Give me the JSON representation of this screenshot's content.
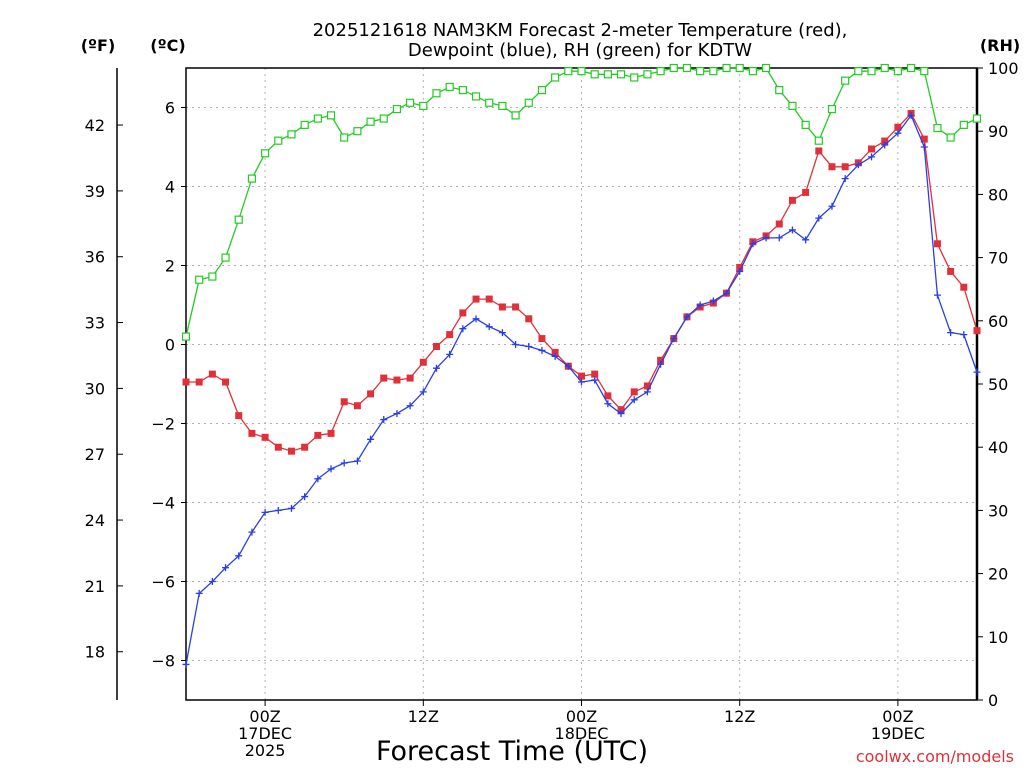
{
  "chart_data": {
    "type": "line",
    "title_lines": [
      "2025121618 NAM3KM Forecast 2-meter Temperature (red),",
      "Dewpoint (blue), RH (green) for KDTW"
    ],
    "xlabel": "Forecast Time (UTC)",
    "credit": "coolwx.com/models",
    "x_unit": "forecast hours from 2025-12-16 18Z",
    "xlim": [
      0,
      60
    ],
    "y_left_c": {
      "unit_label": "(ºC)",
      "ylim": [
        -9,
        7
      ],
      "ticks": [
        -8,
        -6,
        -4,
        -2,
        0,
        2,
        4,
        6
      ]
    },
    "y_left_f": {
      "unit_label": "(ºF)",
      "ticks": [
        18,
        21,
        24,
        27,
        30,
        33,
        36,
        39,
        42
      ]
    },
    "y_right_rh": {
      "unit_label": "(RH)",
      "ylim": [
        0,
        100
      ],
      "ticks": [
        0,
        10,
        20,
        30,
        40,
        50,
        60,
        70,
        80,
        90,
        100
      ]
    },
    "x_ticks": [
      {
        "x": 6,
        "lines": [
          "00Z",
          "17DEC",
          "2025"
        ]
      },
      {
        "x": 18,
        "lines": [
          "12Z"
        ]
      },
      {
        "x": 30,
        "lines": [
          "00Z",
          "18DEC"
        ]
      },
      {
        "x": 42,
        "lines": [
          "12Z"
        ]
      },
      {
        "x": 54,
        "lines": [
          "00Z",
          "19DEC"
        ]
      }
    ],
    "grid": true,
    "series": [
      {
        "name": "Temperature",
        "axis": "C",
        "color": "#e0303a",
        "marker": "filled-square",
        "x": [
          0,
          1,
          2,
          3,
          4,
          5,
          6,
          7,
          8,
          9,
          10,
          11,
          12,
          13,
          14,
          15,
          16,
          17,
          18,
          19,
          20,
          21,
          22,
          23,
          24,
          25,
          26,
          27,
          28,
          29,
          30,
          31,
          32,
          33,
          34,
          35,
          36,
          37,
          38,
          39,
          40,
          41,
          42,
          43,
          44,
          45,
          46,
          47,
          48,
          49,
          50,
          51,
          52,
          53,
          54,
          55,
          56,
          57,
          58,
          59,
          60
        ],
        "values": [
          -0.95,
          -0.95,
          -0.75,
          -0.95,
          -1.8,
          -2.25,
          -2.35,
          -2.6,
          -2.7,
          -2.6,
          -2.3,
          -2.25,
          -1.45,
          -1.55,
          -1.25,
          -0.85,
          -0.9,
          -0.85,
          -0.45,
          -0.05,
          0.25,
          0.8,
          1.15,
          1.15,
          0.95,
          0.95,
          0.65,
          0.15,
          -0.2,
          -0.55,
          -0.8,
          -0.75,
          -1.3,
          -1.65,
          -1.2,
          -1.05,
          -0.4,
          0.15,
          0.7,
          0.95,
          1.05,
          1.3,
          1.95,
          2.6,
          2.75,
          3.05,
          3.65,
          3.85,
          4.9,
          4.5,
          4.5,
          4.6,
          4.95,
          5.15,
          5.5,
          5.85,
          5.2,
          2.55,
          1.85,
          1.45,
          0.35
        ]
      },
      {
        "name": "Dewpoint",
        "axis": "C",
        "color": "#2a3ee8",
        "marker": "plus",
        "x": [
          0,
          1,
          2,
          3,
          4,
          5,
          6,
          7,
          8,
          9,
          10,
          11,
          12,
          13,
          14,
          15,
          16,
          17,
          18,
          19,
          20,
          21,
          22,
          23,
          24,
          25,
          26,
          27,
          28,
          29,
          30,
          31,
          32,
          33,
          34,
          35,
          36,
          37,
          38,
          39,
          40,
          41,
          42,
          43,
          44,
          45,
          46,
          47,
          48,
          49,
          50,
          51,
          52,
          53,
          54,
          55,
          56,
          57,
          58,
          59,
          60
        ],
        "values": [
          -8.1,
          -6.3,
          -6.0,
          -5.65,
          -5.35,
          -4.75,
          -4.25,
          -4.2,
          -4.15,
          -3.85,
          -3.4,
          -3.15,
          -3.0,
          -2.95,
          -2.4,
          -1.9,
          -1.75,
          -1.55,
          -1.2,
          -0.6,
          -0.25,
          0.4,
          0.65,
          0.45,
          0.3,
          0.0,
          -0.05,
          -0.15,
          -0.3,
          -0.55,
          -0.95,
          -0.9,
          -1.5,
          -1.75,
          -1.4,
          -1.2,
          -0.5,
          0.15,
          0.7,
          1.0,
          1.1,
          1.3,
          1.85,
          2.55,
          2.7,
          2.7,
          2.9,
          2.65,
          3.2,
          3.5,
          4.2,
          4.55,
          4.75,
          5.05,
          5.35,
          5.8,
          5.0,
          1.25,
          0.3,
          0.25,
          -0.7
        ]
      },
      {
        "name": "Relative Humidity",
        "axis": "RH",
        "color": "#22cc22",
        "marker": "open-square",
        "x": [
          0,
          1,
          2,
          3,
          4,
          5,
          6,
          7,
          8,
          9,
          10,
          11,
          12,
          13,
          14,
          15,
          16,
          17,
          18,
          19,
          20,
          21,
          22,
          23,
          24,
          25,
          26,
          27,
          28,
          29,
          30,
          31,
          32,
          33,
          34,
          35,
          36,
          37,
          38,
          39,
          40,
          41,
          42,
          43,
          44,
          45,
          46,
          47,
          48,
          49,
          50,
          51,
          52,
          53,
          54,
          55,
          56,
          57,
          58,
          59,
          60
        ],
        "values": [
          57.5,
          66.5,
          67,
          70,
          76,
          82.5,
          86.5,
          88.5,
          89.5,
          91,
          92,
          92.5,
          89,
          90,
          91.5,
          92,
          93.5,
          94.5,
          94,
          96,
          97,
          96.5,
          95.5,
          94.5,
          94,
          92.5,
          94.5,
          96.5,
          98.5,
          99.5,
          99.5,
          99,
          99,
          99,
          98.5,
          99,
          99.5,
          100,
          100,
          99.5,
          99.5,
          100,
          100,
          99.5,
          100,
          96.5,
          94,
          91,
          88.5,
          93.5,
          98,
          99.5,
          99.5,
          100,
          99.5,
          100,
          99.5,
          90.5,
          89,
          91,
          92
        ]
      }
    ]
  }
}
